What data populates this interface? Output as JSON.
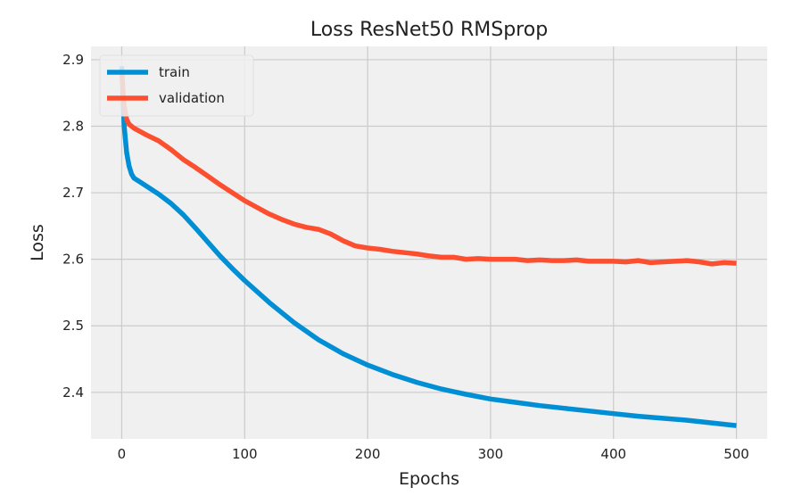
{
  "chart_data": {
    "type": "line",
    "title": "Loss ResNet50 RMSprop",
    "xlabel": "Epochs",
    "ylabel": "Loss",
    "xlim": [
      -25,
      525
    ],
    "ylim": [
      2.33,
      2.92
    ],
    "x_ticks": [
      0,
      100,
      200,
      300,
      400,
      500
    ],
    "y_ticks": [
      2.4,
      2.5,
      2.6,
      2.7,
      2.8,
      2.9
    ],
    "grid": true,
    "legend_position": "top-left",
    "background": "#f0f0f0",
    "series": [
      {
        "name": "train",
        "color": "#008fd5",
        "x": [
          0,
          2,
          4,
          6,
          8,
          10,
          15,
          20,
          30,
          40,
          50,
          60,
          70,
          80,
          90,
          100,
          120,
          140,
          160,
          180,
          200,
          220,
          240,
          260,
          280,
          300,
          320,
          340,
          360,
          380,
          400,
          420,
          440,
          460,
          480,
          500
        ],
        "y": [
          2.89,
          2.8,
          2.76,
          2.74,
          2.728,
          2.722,
          2.716,
          2.71,
          2.698,
          2.684,
          2.667,
          2.647,
          2.626,
          2.605,
          2.586,
          2.568,
          2.535,
          2.505,
          2.479,
          2.458,
          2.441,
          2.427,
          2.415,
          2.405,
          2.397,
          2.39,
          2.385,
          2.38,
          2.376,
          2.372,
          2.368,
          2.364,
          2.361,
          2.358,
          2.354,
          2.35
        ]
      },
      {
        "name": "validation",
        "color": "#fc4f30",
        "x": [
          0,
          2,
          4,
          6,
          8,
          10,
          20,
          30,
          40,
          50,
          60,
          70,
          80,
          90,
          100,
          110,
          120,
          130,
          140,
          150,
          160,
          170,
          180,
          190,
          200,
          210,
          220,
          230,
          240,
          250,
          260,
          270,
          280,
          290,
          300,
          310,
          320,
          330,
          340,
          350,
          360,
          370,
          380,
          390,
          400,
          410,
          420,
          430,
          440,
          450,
          460,
          470,
          480,
          490,
          500
        ],
        "y": [
          2.88,
          2.83,
          2.81,
          2.803,
          2.8,
          2.797,
          2.787,
          2.778,
          2.765,
          2.75,
          2.738,
          2.725,
          2.712,
          2.7,
          2.688,
          2.678,
          2.668,
          2.66,
          2.653,
          2.648,
          2.645,
          2.638,
          2.628,
          2.62,
          2.617,
          2.615,
          2.612,
          2.61,
          2.608,
          2.605,
          2.603,
          2.603,
          2.6,
          2.601,
          2.6,
          2.6,
          2.6,
          2.598,
          2.599,
          2.598,
          2.598,
          2.599,
          2.597,
          2.597,
          2.597,
          2.596,
          2.598,
          2.595,
          2.596,
          2.597,
          2.598,
          2.596,
          2.593,
          2.595,
          2.594
        ]
      }
    ]
  }
}
